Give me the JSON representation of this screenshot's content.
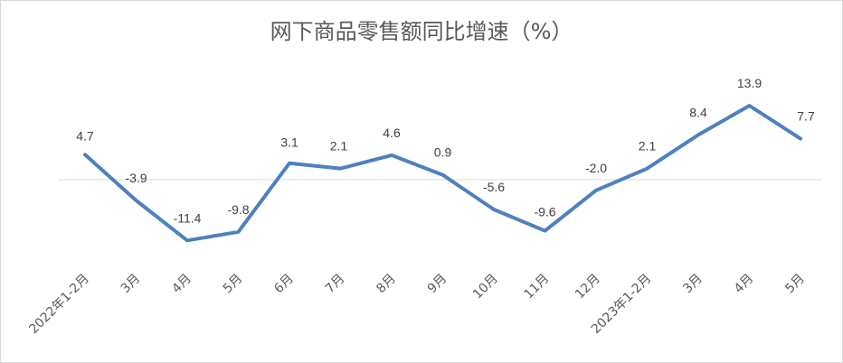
{
  "chart_data": {
    "type": "line",
    "title": "网下商品零售额同比增速（%）",
    "categories": [
      "2022年1-2月",
      "3月",
      "4月",
      "5月",
      "6月",
      "7月",
      "8月",
      "9月",
      "10月",
      "11月",
      "12月",
      "2023年1-2月",
      "3月",
      "4月",
      "5月"
    ],
    "series": [
      {
        "values": [
          4.7,
          -3.9,
          -11.4,
          -9.8,
          3.1,
          2.1,
          4.6,
          0.9,
          -5.6,
          -9.6,
          -2.0,
          2.1,
          8.4,
          13.9,
          7.7
        ]
      }
    ],
    "data_labels": [
      "4.7",
      "-3.9",
      "-11.4",
      "-9.8",
      "3.1",
      "2.1",
      "4.6",
      "0.9",
      "-5.6",
      "-9.6",
      "-2.0",
      "2.1",
      "8.4",
      "13.9",
      "7.7"
    ],
    "xlabel": "",
    "ylabel": "",
    "grid": false,
    "zero_line": true,
    "line_color": "#4e81bd"
  }
}
